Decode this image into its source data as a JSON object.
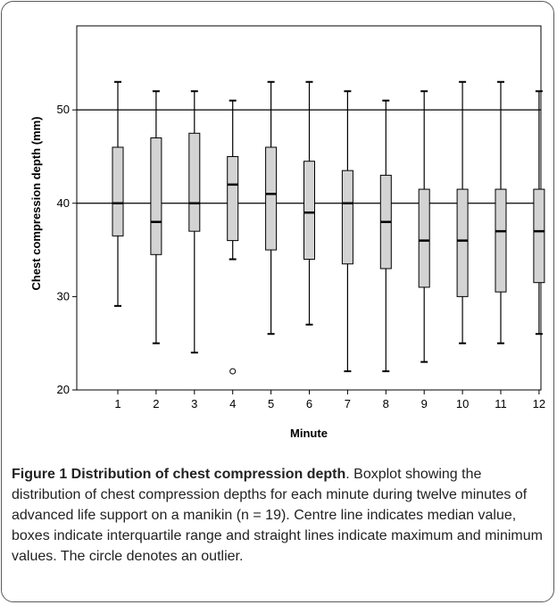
{
  "chart_data": {
    "type": "boxplot",
    "xlabel": "Minute",
    "ylabel": "Chest compression depth (mm)",
    "ylim": [
      20,
      59
    ],
    "yticks": [
      20,
      30,
      40,
      50
    ],
    "reference_lines": [
      40,
      50
    ],
    "categories": [
      "1",
      "2",
      "3",
      "4",
      "5",
      "6",
      "7",
      "8",
      "9",
      "10",
      "11",
      "12"
    ],
    "boxes": [
      {
        "min": 29,
        "q1": 36.5,
        "median": 40,
        "q3": 46,
        "max": 53
      },
      {
        "min": 25,
        "q1": 34.5,
        "median": 38,
        "q3": 47,
        "max": 52
      },
      {
        "min": 24,
        "q1": 37,
        "median": 40,
        "q3": 47.5,
        "max": 52
      },
      {
        "min": 34,
        "q1": 36,
        "median": 42,
        "q3": 45,
        "max": 51
      },
      {
        "min": 26,
        "q1": 35,
        "median": 41,
        "q3": 46,
        "max": 53
      },
      {
        "min": 27,
        "q1": 34,
        "median": 39,
        "q3": 44.5,
        "max": 53
      },
      {
        "min": 22,
        "q1": 33.5,
        "median": 40,
        "q3": 43.5,
        "max": 52
      },
      {
        "min": 22,
        "q1": 33,
        "median": 38,
        "q3": 43,
        "max": 51
      },
      {
        "min": 23,
        "q1": 31,
        "median": 36,
        "q3": 41.5,
        "max": 52
      },
      {
        "min": 25,
        "q1": 30,
        "median": 36,
        "q3": 41.5,
        "max": 53
      },
      {
        "min": 25,
        "q1": 30.5,
        "median": 37,
        "q3": 41.5,
        "max": 53
      },
      {
        "min": 26,
        "q1": 31.5,
        "median": 37,
        "q3": 41.5,
        "max": 52
      }
    ],
    "outliers": [
      {
        "category": "4",
        "value": 22
      }
    ],
    "colors": {
      "box_fill": "#d3d3d3",
      "stroke": "#000000"
    }
  },
  "caption": {
    "title": "Figure 1 Distribution of chest compression depth",
    "text": ". Boxplot showing the distribution of chest compression depths for each minute during twelve minutes of advanced life support on a manikin (n = 19). Centre line indicates median value, boxes indicate interquartile range and straight lines indicate maximum and minimum values. The circle denotes an outlier."
  }
}
